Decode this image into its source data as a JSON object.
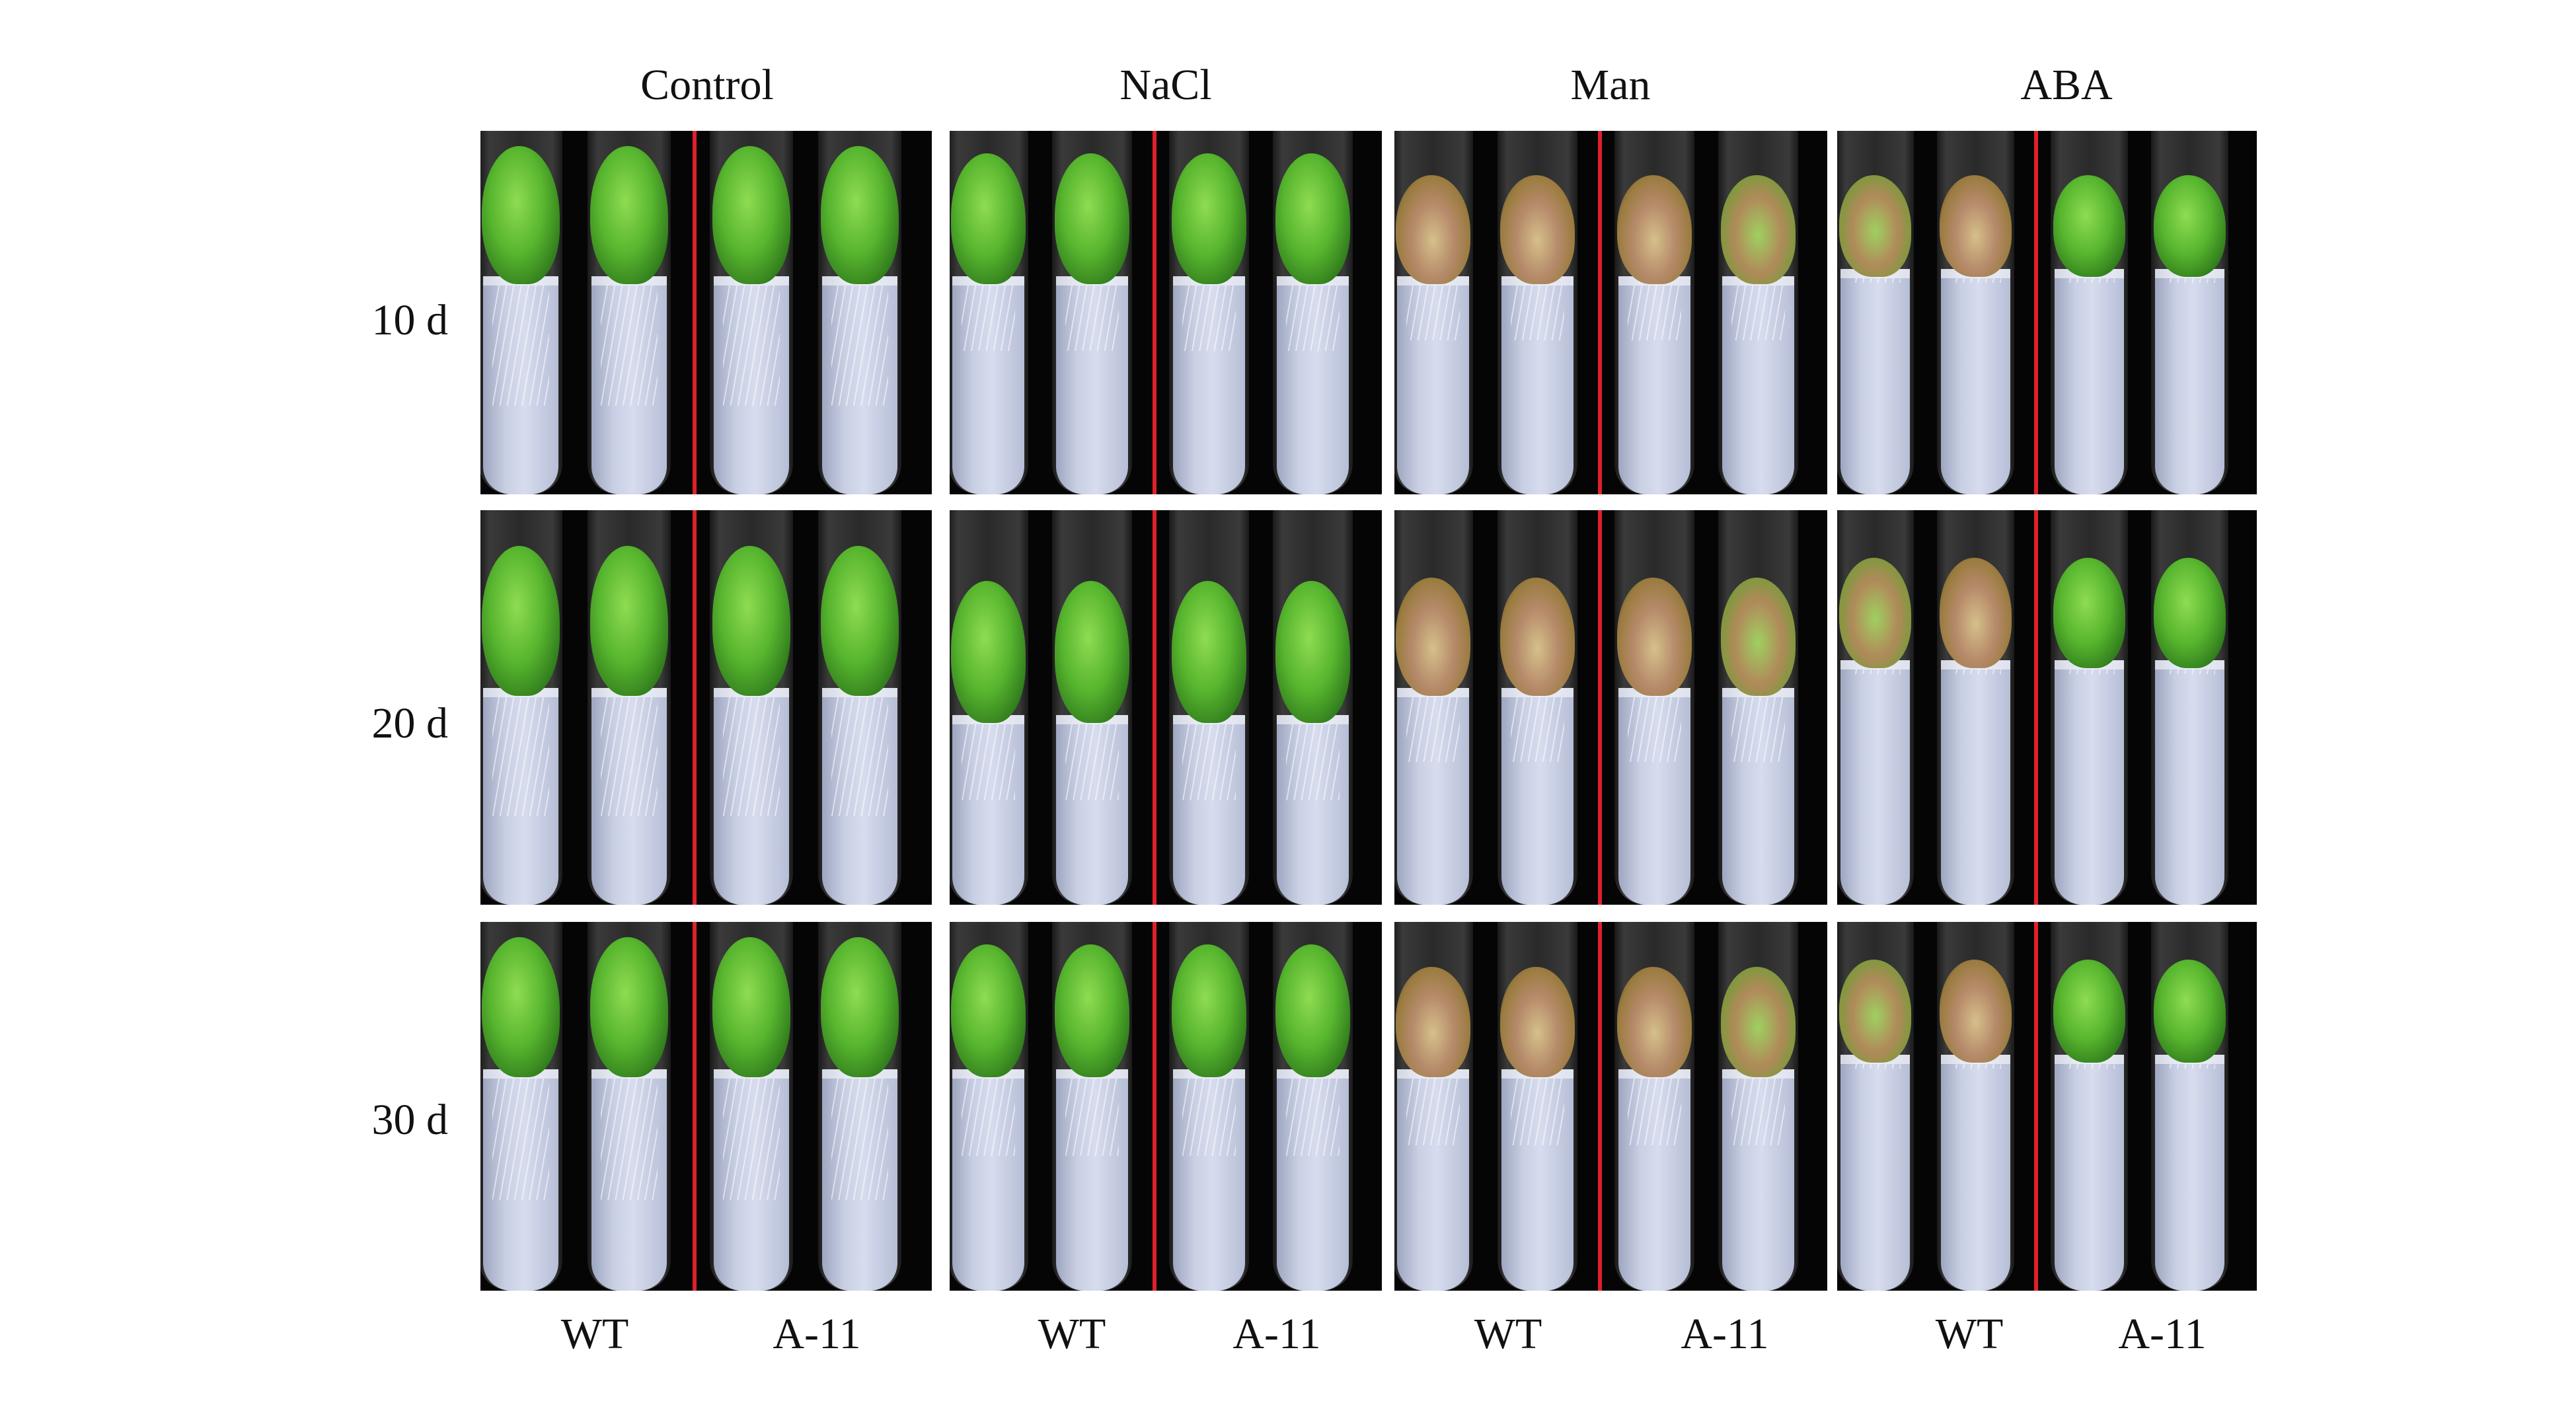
{
  "columns": [
    "Control",
    "NaCl",
    "Man",
    "ABA"
  ],
  "rows": [
    "10 d",
    "20 d",
    "30 d"
  ],
  "genotypes": [
    "WT",
    "A-11"
  ]
}
